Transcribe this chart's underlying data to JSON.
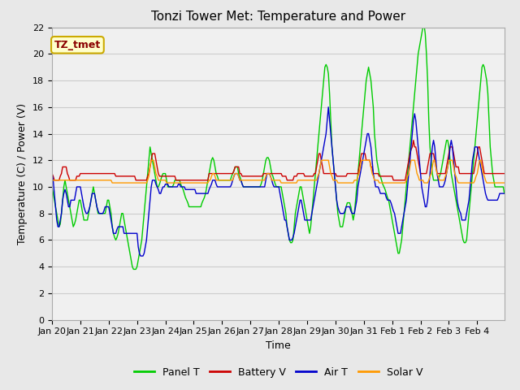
{
  "title": "Tonzi Tower Met: Temperature and Power",
  "xlabel": "Time",
  "ylabel": "Temperature (C) / Power (V)",
  "annotation": "TZ_tmet",
  "annotation_color": "#8B0000",
  "annotation_bg": "#FFFFCC",
  "annotation_border": "#CCAA00",
  "ylim": [
    0,
    22
  ],
  "yticks": [
    0,
    2,
    4,
    6,
    8,
    10,
    12,
    14,
    16,
    18,
    20,
    22
  ],
  "xtick_labels": [
    "Jan 20",
    "Jan 21",
    "Jan 22",
    "Jan 23",
    "Jan 24",
    "Jan 25",
    "Jan 26",
    "Jan 27",
    "Jan 28",
    "Jan 29",
    "Jan 30",
    "Jan 31",
    "Feb 1",
    "Feb 2",
    "Feb 3",
    "Feb 4"
  ],
  "grid_color": "#CCCCCC",
  "fig_bg_color": "#E8E8E8",
  "plot_bg_color": "#F0F0F0",
  "line_colors": {
    "panel": "#00CC00",
    "battery": "#CC0000",
    "air": "#0000CC",
    "solar": "#FF9900"
  },
  "legend_labels": [
    "Panel T",
    "Battery V",
    "Air T",
    "Solar V"
  ],
  "title_fontsize": 11,
  "axis_fontsize": 9,
  "tick_fontsize": 8,
  "legend_fontsize": 9
}
